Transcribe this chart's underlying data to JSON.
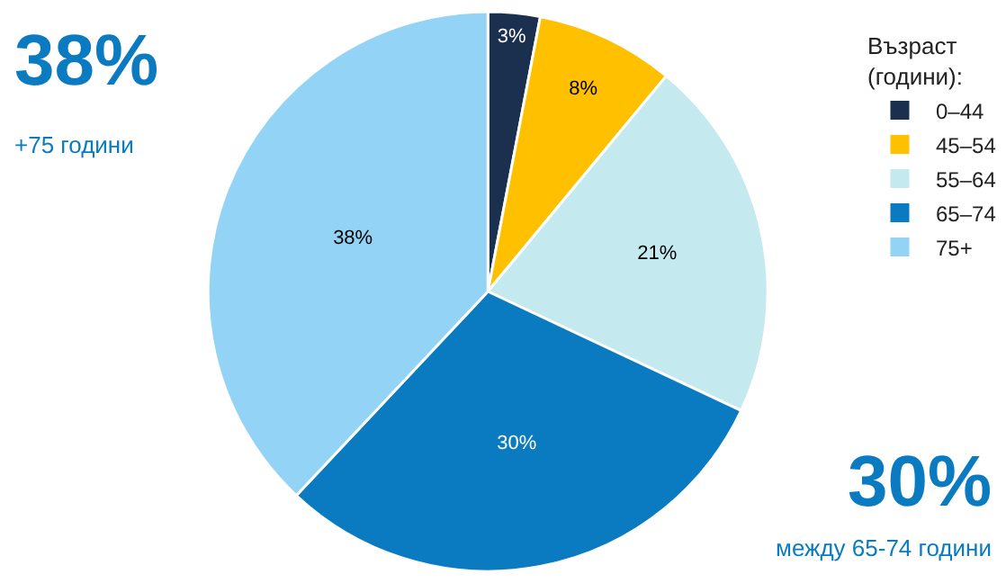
{
  "chart_data": {
    "type": "pie",
    "categories": [
      "0–44",
      "45–54",
      "55–64",
      "65–74",
      "75+"
    ],
    "values": [
      3,
      8,
      21,
      30,
      38
    ],
    "value_labels": [
      "3%",
      "8%",
      "21%",
      "30%",
      "38%"
    ],
    "colors": [
      "#1b2f4f",
      "#ffc000",
      "#c4e9ef",
      "#0a7bc1",
      "#93d3f6"
    ],
    "legend_title": "Възраст (години):",
    "legend": "top right",
    "annotations": [
      "38%",
      "+75 години",
      "30%",
      "между 65-74 години"
    ]
  }
}
